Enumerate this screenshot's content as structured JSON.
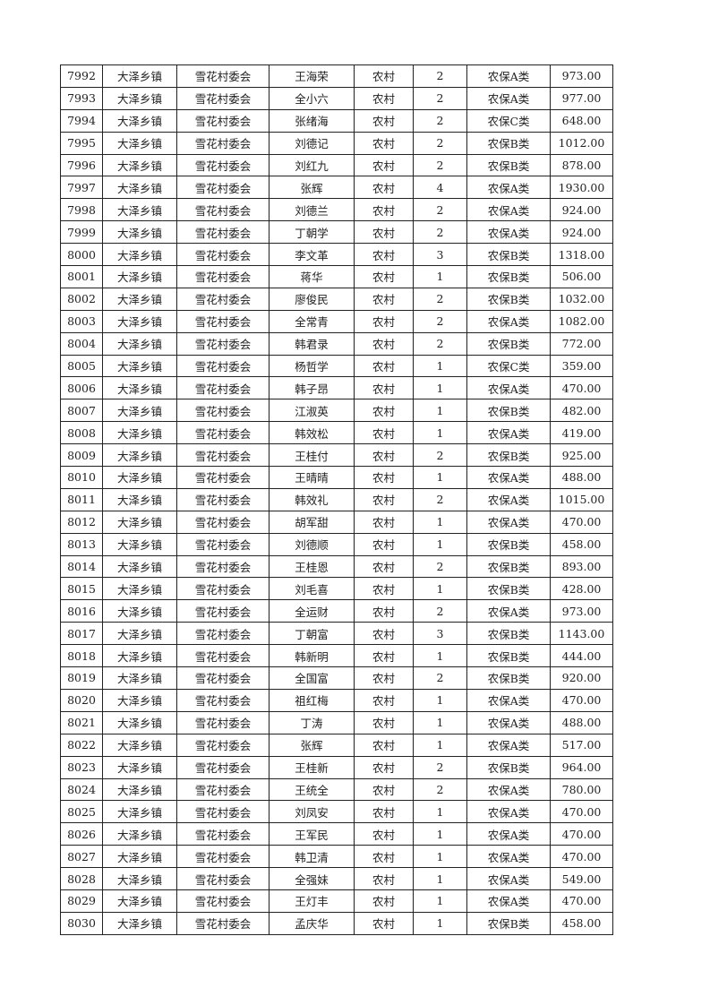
{
  "table": {
    "rows": [
      [
        "7992",
        "大泽乡镇",
        "雪花村委会",
        "王海荣",
        "农村",
        "2",
        "农保A类",
        "973.00"
      ],
      [
        "7993",
        "大泽乡镇",
        "雪花村委会",
        "全小六",
        "农村",
        "2",
        "农保A类",
        "977.00"
      ],
      [
        "7994",
        "大泽乡镇",
        "雪花村委会",
        "张绪海",
        "农村",
        "2",
        "农保C类",
        "648.00"
      ],
      [
        "7995",
        "大泽乡镇",
        "雪花村委会",
        "刘德记",
        "农村",
        "2",
        "农保B类",
        "1012.00"
      ],
      [
        "7996",
        "大泽乡镇",
        "雪花村委会",
        "刘红九",
        "农村",
        "2",
        "农保B类",
        "878.00"
      ],
      [
        "7997",
        "大泽乡镇",
        "雪花村委会",
        "张辉",
        "农村",
        "4",
        "农保A类",
        "1930.00"
      ],
      [
        "7998",
        "大泽乡镇",
        "雪花村委会",
        "刘德兰",
        "农村",
        "2",
        "农保A类",
        "924.00"
      ],
      [
        "7999",
        "大泽乡镇",
        "雪花村委会",
        "丁朝学",
        "农村",
        "2",
        "农保A类",
        "924.00"
      ],
      [
        "8000",
        "大泽乡镇",
        "雪花村委会",
        "李文革",
        "农村",
        "3",
        "农保B类",
        "1318.00"
      ],
      [
        "8001",
        "大泽乡镇",
        "雪花村委会",
        "蒋华",
        "农村",
        "1",
        "农保B类",
        "506.00"
      ],
      [
        "8002",
        "大泽乡镇",
        "雪花村委会",
        "廖俊民",
        "农村",
        "2",
        "农保B类",
        "1032.00"
      ],
      [
        "8003",
        "大泽乡镇",
        "雪花村委会",
        "全常青",
        "农村",
        "2",
        "农保A类",
        "1082.00"
      ],
      [
        "8004",
        "大泽乡镇",
        "雪花村委会",
        "韩君录",
        "农村",
        "2",
        "农保B类",
        "772.00"
      ],
      [
        "8005",
        "大泽乡镇",
        "雪花村委会",
        "杨哲学",
        "农村",
        "1",
        "农保C类",
        "359.00"
      ],
      [
        "8006",
        "大泽乡镇",
        "雪花村委会",
        "韩子昂",
        "农村",
        "1",
        "农保A类",
        "470.00"
      ],
      [
        "8007",
        "大泽乡镇",
        "雪花村委会",
        "江淑英",
        "农村",
        "1",
        "农保B类",
        "482.00"
      ],
      [
        "8008",
        "大泽乡镇",
        "雪花村委会",
        "韩效松",
        "农村",
        "1",
        "农保A类",
        "419.00"
      ],
      [
        "8009",
        "大泽乡镇",
        "雪花村委会",
        "王桂付",
        "农村",
        "2",
        "农保B类",
        "925.00"
      ],
      [
        "8010",
        "大泽乡镇",
        "雪花村委会",
        "王晴晴",
        "农村",
        "1",
        "农保A类",
        "488.00"
      ],
      [
        "8011",
        "大泽乡镇",
        "雪花村委会",
        "韩效礼",
        "农村",
        "2",
        "农保A类",
        "1015.00"
      ],
      [
        "8012",
        "大泽乡镇",
        "雪花村委会",
        "胡军甜",
        "农村",
        "1",
        "农保A类",
        "470.00"
      ],
      [
        "8013",
        "大泽乡镇",
        "雪花村委会",
        "刘德顺",
        "农村",
        "1",
        "农保B类",
        "458.00"
      ],
      [
        "8014",
        "大泽乡镇",
        "雪花村委会",
        "王桂恩",
        "农村",
        "2",
        "农保B类",
        "893.00"
      ],
      [
        "8015",
        "大泽乡镇",
        "雪花村委会",
        "刘毛喜",
        "农村",
        "1",
        "农保B类",
        "428.00"
      ],
      [
        "8016",
        "大泽乡镇",
        "雪花村委会",
        "全运财",
        "农村",
        "2",
        "农保A类",
        "973.00"
      ],
      [
        "8017",
        "大泽乡镇",
        "雪花村委会",
        "丁朝富",
        "农村",
        "3",
        "农保B类",
        "1143.00"
      ],
      [
        "8018",
        "大泽乡镇",
        "雪花村委会",
        "韩新明",
        "农村",
        "1",
        "农保B类",
        "444.00"
      ],
      [
        "8019",
        "大泽乡镇",
        "雪花村委会",
        "全国富",
        "农村",
        "2",
        "农保B类",
        "920.00"
      ],
      [
        "8020",
        "大泽乡镇",
        "雪花村委会",
        "祖红梅",
        "农村",
        "1",
        "农保A类",
        "470.00"
      ],
      [
        "8021",
        "大泽乡镇",
        "雪花村委会",
        "丁涛",
        "农村",
        "1",
        "农保A类",
        "488.00"
      ],
      [
        "8022",
        "大泽乡镇",
        "雪花村委会",
        "张辉",
        "农村",
        "1",
        "农保A类",
        "517.00"
      ],
      [
        "8023",
        "大泽乡镇",
        "雪花村委会",
        "王桂新",
        "农村",
        "2",
        "农保B类",
        "964.00"
      ],
      [
        "8024",
        "大泽乡镇",
        "雪花村委会",
        "王统全",
        "农村",
        "2",
        "农保A类",
        "780.00"
      ],
      [
        "8025",
        "大泽乡镇",
        "雪花村委会",
        "刘凤安",
        "农村",
        "1",
        "农保A类",
        "470.00"
      ],
      [
        "8026",
        "大泽乡镇",
        "雪花村委会",
        "王军民",
        "农村",
        "1",
        "农保A类",
        "470.00"
      ],
      [
        "8027",
        "大泽乡镇",
        "雪花村委会",
        "韩卫清",
        "农村",
        "1",
        "农保A类",
        "470.00"
      ],
      [
        "8028",
        "大泽乡镇",
        "雪花村委会",
        "全强妹",
        "农村",
        "1",
        "农保A类",
        "549.00"
      ],
      [
        "8029",
        "大泽乡镇",
        "雪花村委会",
        "王灯丰",
        "农村",
        "1",
        "农保A类",
        "470.00"
      ],
      [
        "8030",
        "大泽乡镇",
        "雪花村委会",
        "孟庆华",
        "农村",
        "1",
        "农保B类",
        "458.00"
      ]
    ]
  }
}
